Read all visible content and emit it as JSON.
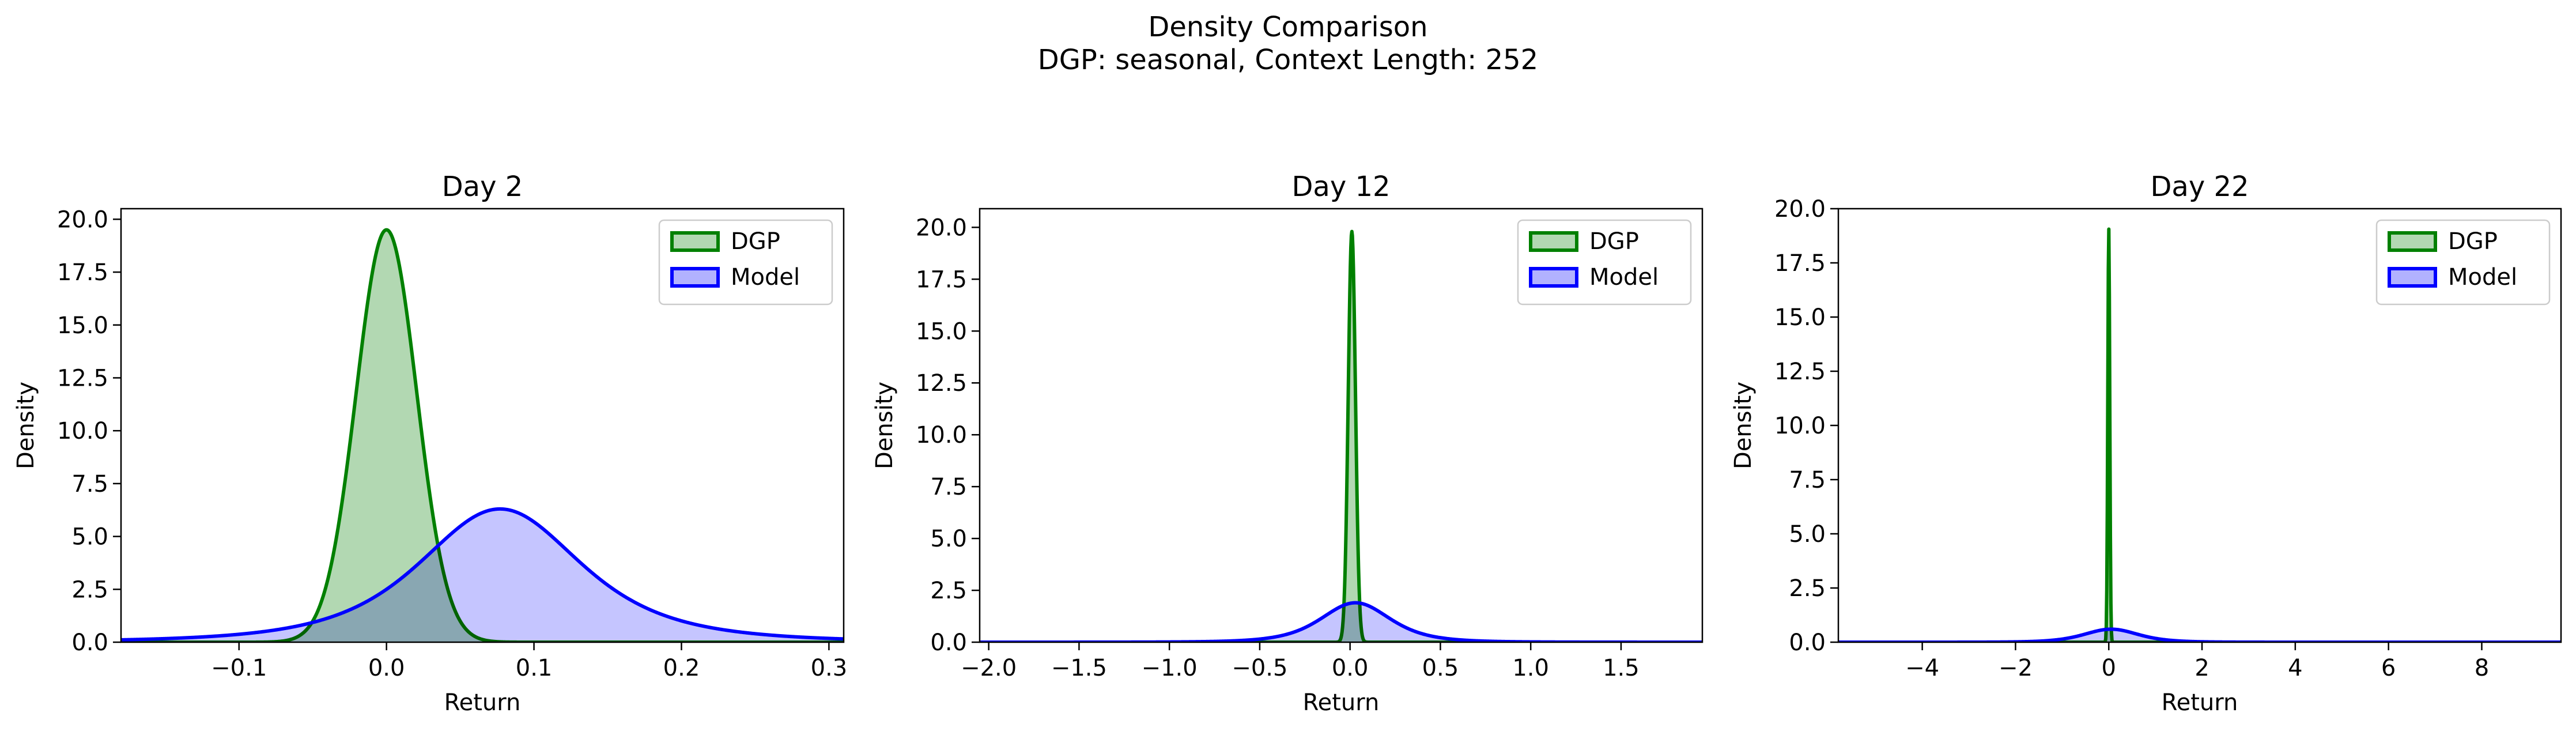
{
  "figure": {
    "suptitle_line1": "Density Comparison",
    "suptitle_line2": "DGP: seasonal, Context Length: 252"
  },
  "colors": {
    "dgp": "#008000",
    "model": "#0000ff",
    "dgp_fill": "#b2d8b2",
    "model_fill": "#b2b2ff"
  },
  "chart_data": [
    {
      "type": "area",
      "title": "Day 2",
      "xlabel": "Return",
      "ylabel": "Density",
      "xlim": [
        -0.18,
        0.31
      ],
      "ylim": [
        0,
        20.5
      ],
      "xticks": [
        -0.1,
        0.0,
        0.1,
        0.2,
        0.3
      ],
      "xtick_labels": [
        "−0.1",
        "0.0",
        "0.1",
        "0.2",
        "0.3"
      ],
      "yticks": [
        0,
        2.5,
        5,
        7.5,
        10,
        12.5,
        15,
        17.5,
        20
      ],
      "ytick_labels": [
        "0.0",
        "2.5",
        "5.0",
        "7.5",
        "10.0",
        "12.5",
        "15.0",
        "17.5",
        "20.0"
      ],
      "legend": {
        "position": "top-right",
        "entries": [
          "DGP",
          "Model"
        ]
      },
      "grid": false,
      "series": [
        {
          "name": "DGP",
          "kind": "normal",
          "mean": 0.0,
          "peak": 19.5,
          "sd": 0.0205
        },
        {
          "name": "Model",
          "kind": "student-t",
          "mean": 0.077,
          "peak": 6.3,
          "scale": 0.058,
          "df": 3
        }
      ]
    },
    {
      "type": "area",
      "title": "Day 12",
      "xlabel": "Return",
      "ylabel": "Density",
      "xlim": [
        -2.05,
        1.95
      ],
      "ylim": [
        0,
        20.9
      ],
      "xticks": [
        -2.0,
        -1.5,
        -1.0,
        -0.5,
        0.0,
        0.5,
        1.0,
        1.5
      ],
      "xtick_labels": [
        "−2.0",
        "−1.5",
        "−1.0",
        "−0.5",
        "0.0",
        "0.5",
        "1.0",
        "1.5"
      ],
      "yticks": [
        0,
        2.5,
        5,
        7.5,
        10,
        12.5,
        15,
        17.5,
        20
      ],
      "ytick_labels": [
        "0.0",
        "2.5",
        "5.0",
        "7.5",
        "10.0",
        "12.5",
        "15.0",
        "17.5",
        "20.0"
      ],
      "legend": {
        "position": "top-right",
        "entries": [
          "DGP",
          "Model"
        ]
      },
      "grid": false,
      "series": [
        {
          "name": "DGP",
          "kind": "normal",
          "mean": 0.01,
          "peak": 19.8,
          "sd": 0.02
        },
        {
          "name": "Model",
          "kind": "student-t",
          "mean": 0.03,
          "peak": 1.9,
          "scale": 0.2,
          "df": 4
        }
      ]
    },
    {
      "type": "area",
      "title": "Day 22",
      "xlabel": "Return",
      "ylabel": "Density",
      "xlim": [
        -5.8,
        9.7
      ],
      "ylim": [
        0,
        20.0
      ],
      "xticks": [
        -4,
        -2,
        0,
        2,
        4,
        6,
        8
      ],
      "xtick_labels": [
        "−4",
        "−2",
        "0",
        "2",
        "4",
        "6",
        "8"
      ],
      "yticks": [
        0,
        2.5,
        5,
        7.5,
        10,
        12.5,
        15,
        17.5,
        20
      ],
      "ytick_labels": [
        "0.0",
        "2.5",
        "5.0",
        "7.5",
        "10.0",
        "12.5",
        "15.0",
        "17.5",
        "20.0"
      ],
      "legend": {
        "position": "top-right",
        "entries": [
          "DGP",
          "Model"
        ]
      },
      "grid": false,
      "series": [
        {
          "name": "DGP",
          "kind": "normal",
          "mean": 0.0,
          "peak": 19.1,
          "sd": 0.021
        },
        {
          "name": "Model",
          "kind": "student-t",
          "mean": 0.05,
          "peak": 0.6,
          "scale": 0.6,
          "df": 5
        }
      ]
    }
  ]
}
